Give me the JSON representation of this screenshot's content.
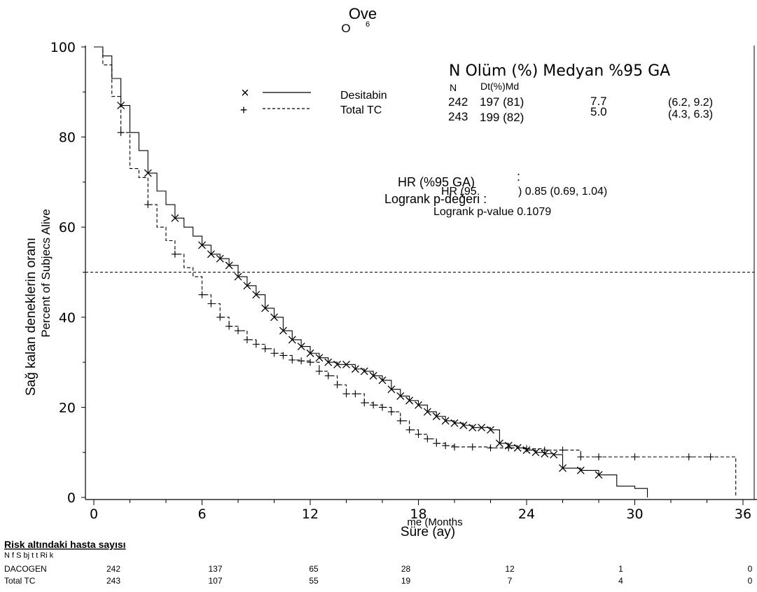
{
  "chart_data": {
    "type": "line",
    "title": "Ove",
    "title_overlay": "O",
    "title_superscript": "6",
    "ylabel": "Sağ kalan deneklerin oranı",
    "ylabel_overlay": "Percent of Subjecs Alive",
    "xlabel": "Süre (ay)",
    "xlabel_overlay": "me (Months",
    "xlim": [
      0,
      36
    ],
    "ylim": [
      0,
      100
    ],
    "x_ticks": [
      "0",
      "6",
      "12",
      "18",
      "24",
      "30",
      "36"
    ],
    "y_ticks": [
      "0",
      "20",
      "40",
      "60",
      "80",
      "100"
    ],
    "reference_line_y": 50,
    "legend": {
      "header": "N Olüm (%) Medyan %95 GA",
      "subheader_n": "N",
      "subheader_mid": "Dt(%)Md",
      "rows": [
        {
          "marker": "×",
          "label": "Desitabin",
          "n": "242",
          "deaths": "197 (81)",
          "median": "7.7",
          "ci": "(6.2, 9.2)"
        },
        {
          "marker": "+",
          "label": "Total TC",
          "n": "243",
          "deaths": "199 (82)",
          "median": "5.0",
          "ci": "(4.3, 6.3)"
        }
      ]
    },
    "annotations": {
      "hr_tr": "HR (%95 GA)",
      "hr_tr_colon": ":",
      "hr_en": "HR (95",
      "hr_value": ") 0.85 (0.69, 1.04)",
      "logrank_tr": "Logrank p-değeri :",
      "logrank_en": "Logrank p-value 0.1079"
    },
    "series": [
      {
        "name": "Desitabin",
        "style": "solid",
        "marker": "x",
        "x": [
          0,
          0.5,
          1,
          1.5,
          2,
          2.5,
          3,
          3.5,
          4,
          4.5,
          5,
          5.5,
          6,
          6.5,
          7,
          7.5,
          8,
          8.5,
          9,
          9.5,
          10,
          10.5,
          11,
          11.5,
          12,
          12.5,
          13,
          13.5,
          14,
          14.5,
          15,
          15.5,
          16,
          16.5,
          17,
          17.5,
          18,
          18.5,
          19,
          19.5,
          20,
          20.5,
          21,
          21.5,
          22,
          22.5,
          23,
          23.5,
          24,
          24.5,
          25,
          25.5,
          26,
          27,
          28,
          29,
          30,
          30.7
        ],
        "y": [
          100,
          98,
          93,
          87,
          81,
          77,
          72,
          68,
          65,
          62,
          60,
          58,
          56,
          54,
          53,
          51.5,
          49,
          47,
          45,
          42,
          40,
          37,
          35,
          33.5,
          32,
          31,
          30,
          29.5,
          29.5,
          28.5,
          28,
          27,
          26,
          24,
          22.5,
          21.5,
          20.5,
          19,
          18,
          17,
          16.5,
          16,
          15.5,
          15.5,
          15,
          12,
          11.5,
          11,
          10.5,
          10,
          9.7,
          9.5,
          6.5,
          6,
          5,
          2.5,
          2,
          0
        ]
      },
      {
        "name": "Total TC",
        "style": "dashed",
        "marker": "+",
        "x": [
          0,
          0.5,
          1,
          1.5,
          2,
          2.5,
          3,
          3.5,
          4,
          4.5,
          5,
          5.5,
          6,
          6.5,
          7,
          7.5,
          8,
          8.5,
          9,
          9.5,
          10,
          10.5,
          11,
          11.5,
          12,
          12.5,
          13,
          13.5,
          14,
          14.5,
          15,
          15.5,
          16,
          16.5,
          17,
          17.5,
          18,
          18.5,
          19,
          19.5,
          20,
          21,
          22,
          23,
          24,
          25,
          26,
          27,
          28,
          30,
          33,
          34.2,
          35.6
        ],
        "y": [
          100,
          96,
          89,
          81,
          73,
          71,
          65,
          60,
          57,
          54,
          51,
          49,
          45,
          43,
          40,
          38,
          37,
          35,
          34,
          33,
          32,
          31.5,
          30.5,
          30.3,
          30,
          28,
          27,
          25,
          23,
          23,
          21,
          20.5,
          20,
          19,
          17,
          15,
          14,
          13,
          12,
          11.5,
          11.2,
          11.2,
          11,
          11,
          10.8,
          10.5,
          10.5,
          9,
          9,
          9,
          9,
          9,
          0
        ]
      }
    ],
    "risk_table": {
      "title": "Risk altındaki hasta sayısı",
      "overlay": "N  f S bj t t Ri k",
      "rows": [
        {
          "label": "DACOGEN",
          "values": [
            "242",
            "137",
            "65",
            "28",
            "12",
            "1",
            "0"
          ]
        },
        {
          "label": "Total TC",
          "values": [
            "243",
            "107",
            "55",
            "19",
            "7",
            "4",
            "0"
          ]
        }
      ]
    }
  }
}
